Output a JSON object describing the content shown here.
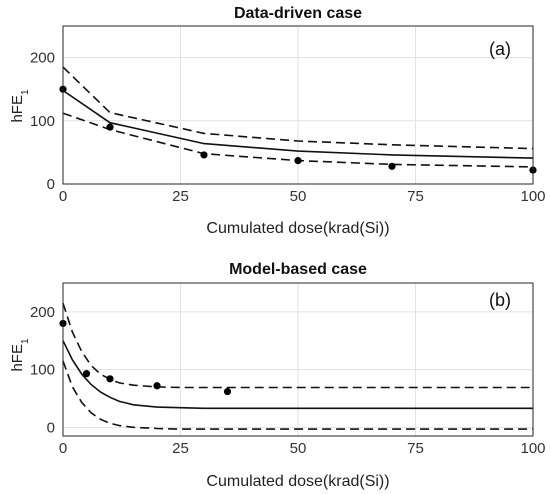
{
  "chart_data": [
    {
      "type": "line",
      "title": "Data-driven case",
      "annotation": "(a)",
      "xlabel": "Cumulated dose(krad(Si))",
      "ylabel_base": "hFE",
      "ylabel_sub": "1",
      "xlim": [
        0,
        100
      ],
      "ylim": [
        0,
        250
      ],
      "xticks": [
        0,
        25,
        50,
        75,
        100
      ],
      "yticks": [
        0,
        100,
        200
      ],
      "grid": true,
      "series": [
        {
          "style": "solid",
          "x": [
            0,
            10,
            30,
            50,
            70,
            100
          ],
          "y": [
            148,
            97,
            64,
            52,
            46,
            41
          ]
        },
        {
          "style": "dashed",
          "x": [
            0,
            10,
            30,
            50,
            70,
            100
          ],
          "y": [
            185,
            113,
            80,
            68,
            62,
            56
          ]
        },
        {
          "style": "dashed",
          "x": [
            0,
            10,
            30,
            50,
            70,
            100
          ],
          "y": [
            112,
            86,
            48,
            37,
            31,
            27
          ]
        },
        {
          "style": "markers",
          "x": [
            0,
            10,
            30,
            50,
            70,
            100
          ],
          "y": [
            150,
            90,
            46,
            37,
            28,
            22
          ]
        }
      ]
    },
    {
      "type": "line",
      "title": "Model-based case",
      "annotation": "(b)",
      "xlabel": "Cumulated dose(krad(Si))",
      "ylabel_base": "hFE",
      "ylabel_sub": "1",
      "xlim": [
        0,
        100
      ],
      "ylim": [
        -15,
        250
      ],
      "xticks": [
        0,
        25,
        50,
        75,
        100
      ],
      "yticks": [
        0,
        100,
        200
      ],
      "grid": true,
      "series": [
        {
          "style": "solid",
          "x": [
            0,
            2,
            4,
            6,
            8,
            10,
            12,
            15,
            20,
            25,
            30,
            40,
            50,
            60,
            70,
            80,
            90,
            100
          ],
          "y": [
            150,
            117,
            92,
            74,
            61,
            52,
            45,
            39,
            35,
            34,
            33,
            33,
            33,
            33,
            33,
            33,
            33,
            33
          ]
        },
        {
          "style": "dashed",
          "x": [
            0,
            2,
            4,
            6,
            8,
            10,
            12,
            15,
            20,
            25,
            30,
            40,
            50,
            60,
            70,
            80,
            90,
            100
          ],
          "y": [
            215,
            165,
            131,
            107,
            92,
            83,
            77,
            73,
            70,
            69,
            69,
            69,
            69,
            69,
            69,
            69,
            69,
            69
          ]
        },
        {
          "style": "dashed",
          "x": [
            0,
            2,
            4,
            6,
            8,
            10,
            12,
            15,
            20,
            25,
            30,
            40,
            50,
            60,
            70,
            80,
            90,
            100
          ],
          "y": [
            115,
            70,
            43,
            25,
            14,
            7,
            3,
            0,
            -2,
            -3,
            -3,
            -3,
            -3,
            -3,
            -3,
            -3,
            -3,
            -3
          ]
        },
        {
          "style": "markers",
          "x": [
            0,
            5,
            10,
            20,
            35
          ],
          "y": [
            180,
            93,
            84,
            72,
            62
          ]
        }
      ]
    }
  ]
}
